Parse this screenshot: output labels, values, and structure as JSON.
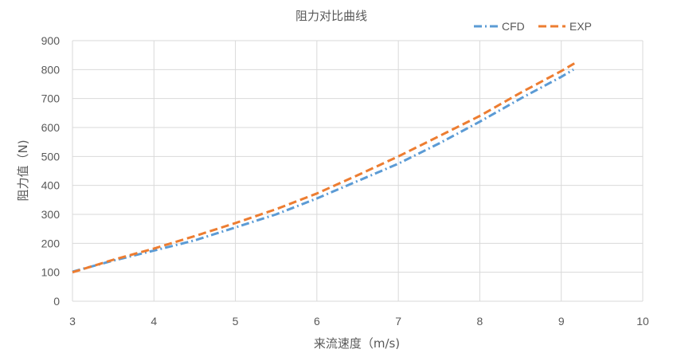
{
  "chart_data": {
    "type": "line",
    "title": "阻力对比曲线",
    "xlabel": "来流速度（m/s)",
    "ylabel": "阻力值（N)",
    "xlim": [
      3,
      10
    ],
    "ylim": [
      0,
      900
    ],
    "xticks": [
      3,
      4,
      5,
      6,
      7,
      8,
      9,
      10
    ],
    "yticks": [
      0,
      100,
      200,
      300,
      400,
      500,
      600,
      700,
      800,
      900
    ],
    "grid": true,
    "legend_position": "top-right",
    "series": [
      {
        "name": "CFD",
        "color": "#5B9BD5",
        "dash": "dash-dot",
        "x": [
          3.0,
          3.5,
          4.0,
          4.5,
          5.0,
          5.5,
          6.0,
          6.5,
          7.0,
          7.5,
          8.0,
          8.5,
          9.0,
          9.15
        ],
        "y": [
          102,
          140,
          175,
          210,
          255,
          300,
          355,
          415,
          475,
          545,
          620,
          700,
          775,
          800
        ]
      },
      {
        "name": "EXP",
        "color": "#ED7D31",
        "dash": "dash",
        "x": [
          3.0,
          3.5,
          4.0,
          4.5,
          5.0,
          5.5,
          6.0,
          6.5,
          7.0,
          7.5,
          8.0,
          8.5,
          9.0,
          9.2
        ],
        "y": [
          100,
          143,
          182,
          225,
          270,
          318,
          372,
          435,
          500,
          570,
          640,
          720,
          795,
          828
        ]
      }
    ]
  }
}
